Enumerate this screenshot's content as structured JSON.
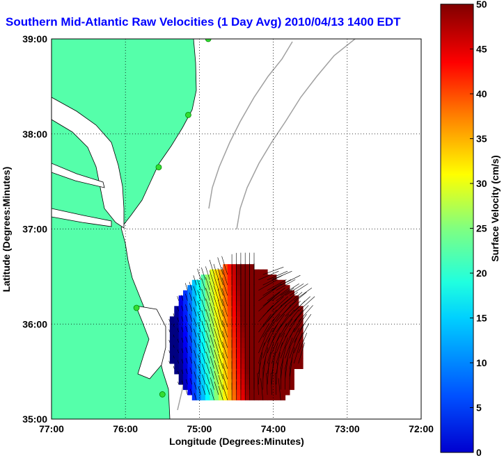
{
  "colors": {
    "title": "#0000ff",
    "land": "#55ffaa",
    "coast": "#000000",
    "bathy": "#a0a0a0",
    "station": "#33dd33",
    "grid": "#000000"
  },
  "chart_data": {
    "type": "heatmap",
    "title": "Southern Mid-Atlantic Raw Velocities (1 Day Avg) 2010/04/13 1400 EDT",
    "xlabel": "Longitude (Degrees:Minutes)",
    "ylabel": "Latitude (Degrees:Minutes)",
    "colorbar_label": "Surface Velocity (cm/s)",
    "xlim": [
      -77,
      -72
    ],
    "ylim": [
      35,
      39
    ],
    "x_ticks": [
      {
        "value": -77,
        "label": "77:00"
      },
      {
        "value": -76,
        "label": "76:00"
      },
      {
        "value": -75,
        "label": "75:00"
      },
      {
        "value": -74,
        "label": "74:00"
      },
      {
        "value": -73,
        "label": "73:00"
      },
      {
        "value": -72,
        "label": "72:00"
      }
    ],
    "y_ticks": [
      {
        "value": 35,
        "label": "35:00"
      },
      {
        "value": 36,
        "label": "36:00"
      },
      {
        "value": 37,
        "label": "37:00"
      },
      {
        "value": 38,
        "label": "38:00"
      },
      {
        "value": 39,
        "label": "39:00"
      }
    ],
    "colorbar_range": [
      0,
      50
    ],
    "colorbar_ticks": [
      0,
      5,
      10,
      15,
      20,
      25,
      30,
      35,
      40,
      45,
      50
    ],
    "colormap": "jet",
    "grid": true,
    "stations": [
      {
        "lon": -74.88,
        "lat": 39.0
      },
      {
        "lon": -75.15,
        "lat": 38.2
      },
      {
        "lon": -75.55,
        "lat": 37.65
      },
      {
        "lon": -75.85,
        "lat": 36.17
      },
      {
        "lon": -75.5,
        "lat": 35.26
      }
    ]
  }
}
